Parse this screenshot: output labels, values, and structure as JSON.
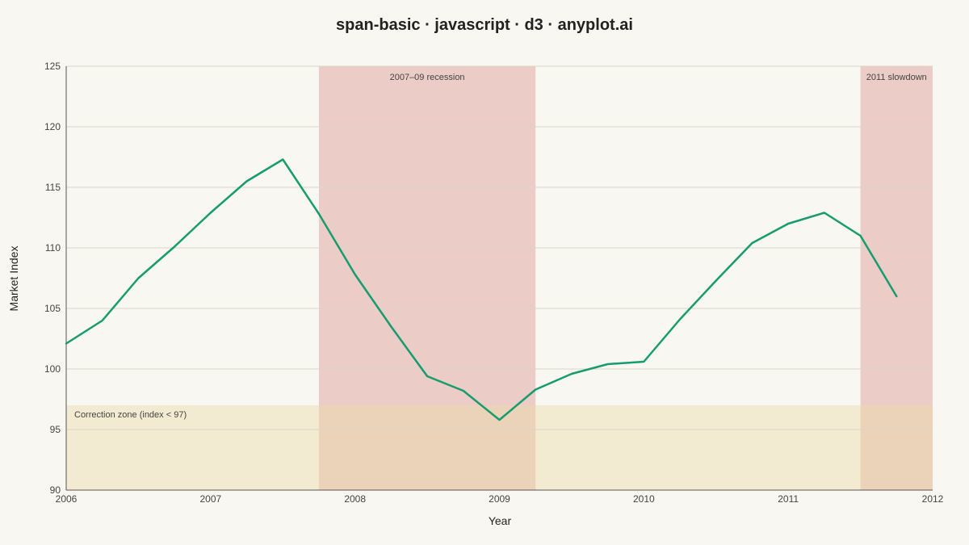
{
  "chart_data": {
    "type": "line",
    "title": "span-basic · javascript · d3 · anyplot.ai",
    "xlabel": "Year",
    "ylabel": "Market Index",
    "xlim": [
      2006,
      2012
    ],
    "ylim": [
      90,
      125
    ],
    "x_ticks": [
      "2006",
      "2007",
      "2008",
      "2009",
      "2010",
      "2011",
      "2012"
    ],
    "y_ticks": [
      90,
      95,
      100,
      105,
      110,
      115,
      120,
      125
    ],
    "grid": "horizontal",
    "series": [
      {
        "color": "#169c6e",
        "x": [
          2006.0,
          2006.25,
          2006.5,
          2006.75,
          2007.0,
          2007.25,
          2007.5,
          2007.75,
          2008.0,
          2008.25,
          2008.5,
          2008.75,
          2009.0,
          2009.25,
          2009.5,
          2009.75,
          2010.0,
          2010.25,
          2010.5,
          2010.75,
          2011.0,
          2011.25,
          2011.5,
          2011.75
        ],
        "values": [
          102.1,
          104.0,
          107.5,
          110.1,
          112.9,
          115.5,
          117.3,
          112.8,
          107.8,
          103.5,
          99.4,
          98.2,
          95.8,
          98.3,
          99.6,
          100.4,
          100.6,
          104.1,
          107.3,
          110.4,
          112.0,
          112.9,
          111.0,
          106.0
        ]
      }
    ],
    "spans": [
      {
        "orientation": "vertical",
        "from": 2007.75,
        "to": 2009.25,
        "label": "2007–09 recession",
        "color": "#d9928a",
        "opacity": 0.42
      },
      {
        "orientation": "vertical",
        "from": 2011.5,
        "to": 2012.0,
        "label": "2011 slowdown",
        "color": "#d9928a",
        "opacity": 0.42
      },
      {
        "orientation": "horizontal",
        "from": 90,
        "to": 97,
        "label": "Correction zone (index < 97)",
        "color": "#ecdcaa",
        "opacity": 0.45
      }
    ]
  }
}
